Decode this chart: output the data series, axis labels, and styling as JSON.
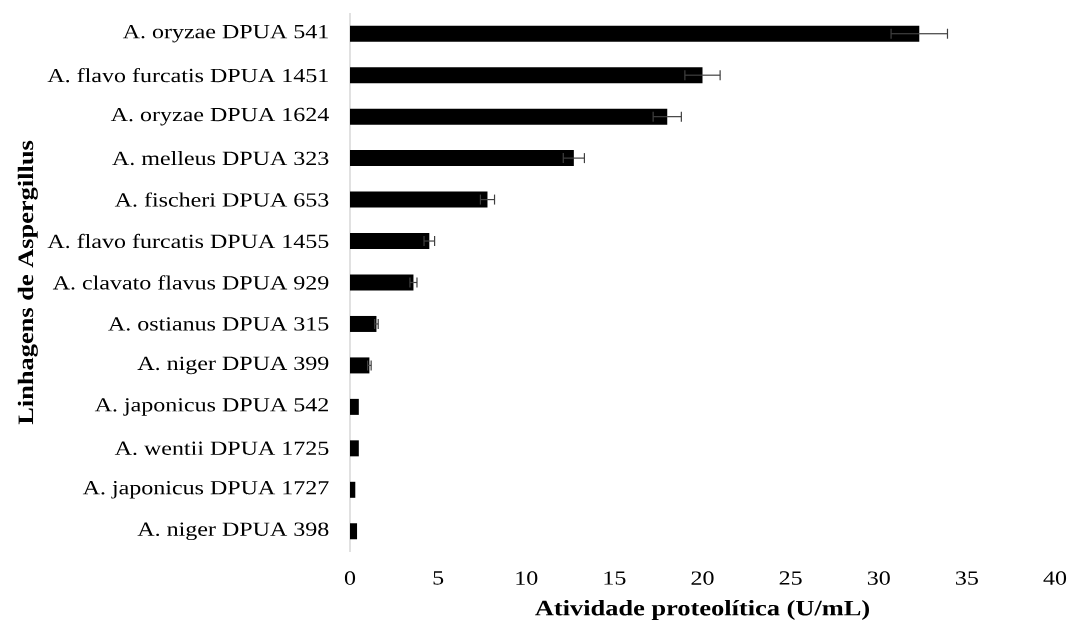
{
  "chart_data": {
    "type": "bar",
    "orientation": "horizontal",
    "xlabel": "Atividade proteolítica (U/mL)",
    "ylabel": "Linhagens de Aspergillus",
    "categories": [
      "A. oryzae DPUA 541",
      "A. flavo furcatis DPUA 1451",
      "A. oryzae DPUA 1624",
      "A. melleus DPUA 323",
      "A. fischeri DPUA 653",
      "A. flavo furcatis DPUA 1455",
      "A. clavato flavus DPUA 929",
      "A. ostianus DPUA 315",
      "A. niger DPUA 399",
      "A. japonicus DPUA 542",
      "A. wentii DPUA 1725",
      "A. japonicus DPUA 1727",
      "A. niger DPUA 398"
    ],
    "values": [
      32.3,
      20.0,
      18.0,
      12.7,
      7.8,
      4.5,
      3.6,
      1.5,
      1.1,
      0.5,
      0.5,
      0.3,
      0.4
    ],
    "errors": [
      1.6,
      1.0,
      0.8,
      0.6,
      0.4,
      0.3,
      0.2,
      0.1,
      0.1,
      null,
      null,
      null,
      null
    ],
    "color": "#000000",
    "xlim": [
      0,
      40
    ],
    "xticks": [
      0,
      5,
      10,
      15,
      20,
      25,
      30,
      35,
      40
    ]
  }
}
